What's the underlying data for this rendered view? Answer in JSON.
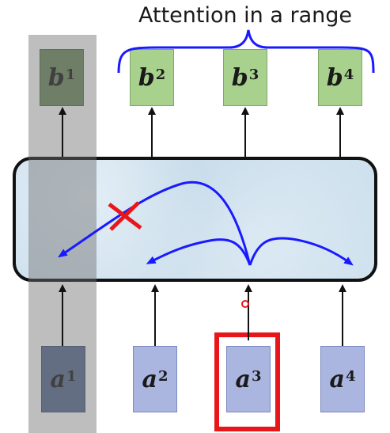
{
  "title": "Attention in a range",
  "outputs": [
    {
      "letter": "b",
      "sup": "1"
    },
    {
      "letter": "b",
      "sup": "2"
    },
    {
      "letter": "b",
      "sup": "3"
    },
    {
      "letter": "b",
      "sup": "4"
    }
  ],
  "inputs": [
    {
      "letter": "a",
      "sup": "1"
    },
    {
      "letter": "a",
      "sup": "2"
    },
    {
      "letter": "a",
      "sup": "3"
    },
    {
      "letter": "a",
      "sup": "4"
    }
  ],
  "colors": {
    "arrow_blue": "#1a1aff",
    "cross_red": "#e8161b",
    "selector_red": "#e8161b",
    "output_green": "#a9d18e",
    "input_blue": "#aab6e0"
  }
}
